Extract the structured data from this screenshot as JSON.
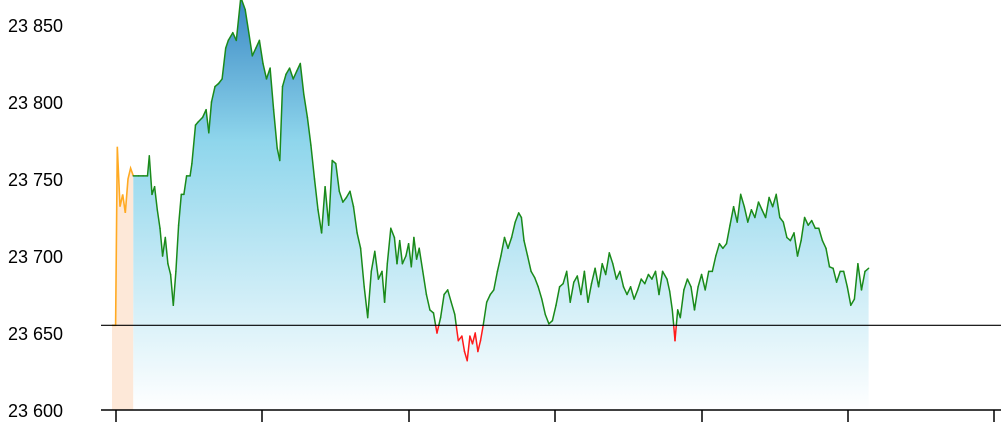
{
  "chart_data": {
    "type": "area",
    "title": "",
    "xlabel": "",
    "ylabel": "",
    "ylim": [
      23600,
      23870
    ],
    "x_range": [
      0,
      1000
    ],
    "baseline": 23655,
    "yticks": [
      {
        "value": 23850,
        "label": "23 850"
      },
      {
        "value": 23800,
        "label": "23 800"
      },
      {
        "value": 23750,
        "label": "23 750"
      },
      {
        "value": 23700,
        "label": "23 700"
      },
      {
        "value": 23650,
        "label": "23 650"
      },
      {
        "value": 23600,
        "label": "23 600"
      }
    ],
    "xticks": [
      0,
      146,
      293,
      439,
      586,
      732,
      878
    ],
    "colors": {
      "up_line": "#1a8a1a",
      "down_line": "#ff1a1a",
      "pre_line": "#ffaa22",
      "baseline": "#000000",
      "fill_top": "#3a88c4",
      "fill_mid": "#8fd6ec",
      "fill_bottom": "#ffffff",
      "pre_fill": "#fde8d8"
    },
    "pre_session": [
      [
        0,
        23655
      ],
      [
        4,
        23655
      ],
      [
        6,
        23771
      ],
      [
        9,
        23732
      ],
      [
        12,
        23740
      ],
      [
        15,
        23728
      ],
      [
        18,
        23750
      ],
      [
        21,
        23757
      ],
      [
        24,
        23752
      ]
    ],
    "series": [
      [
        24,
        23752
      ],
      [
        30,
        23752
      ],
      [
        35,
        23752
      ],
      [
        40,
        23752
      ],
      [
        42,
        23765
      ],
      [
        45,
        23740
      ],
      [
        48,
        23745
      ],
      [
        51,
        23730
      ],
      [
        54,
        23718
      ],
      [
        57,
        23700
      ],
      [
        60,
        23712
      ],
      [
        63,
        23695
      ],
      [
        66,
        23688
      ],
      [
        69,
        23668
      ],
      [
        72,
        23690
      ],
      [
        75,
        23720
      ],
      [
        78,
        23740
      ],
      [
        81,
        23740
      ],
      [
        84,
        23752
      ],
      [
        88,
        23752
      ],
      [
        90,
        23760
      ],
      [
        94,
        23785
      ],
      [
        97,
        23787
      ],
      [
        102,
        23790
      ],
      [
        106,
        23795
      ],
      [
        109,
        23780
      ],
      [
        112,
        23800
      ],
      [
        116,
        23810
      ],
      [
        120,
        23812
      ],
      [
        124,
        23815
      ],
      [
        128,
        23835
      ],
      [
        131,
        23840
      ],
      [
        136,
        23845
      ],
      [
        140,
        23840
      ],
      [
        145,
        23868
      ],
      [
        150,
        23860
      ],
      [
        154,
        23845
      ],
      [
        158,
        23830
      ],
      [
        162,
        23835
      ],
      [
        166,
        23840
      ],
      [
        170,
        23825
      ],
      [
        174,
        23815
      ],
      [
        178,
        23822
      ],
      [
        182,
        23795
      ],
      [
        186,
        23770
      ],
      [
        189,
        23762
      ],
      [
        192,
        23810
      ],
      [
        196,
        23818
      ],
      [
        200,
        23822
      ],
      [
        204,
        23815
      ],
      [
        208,
        23820
      ],
      [
        212,
        23825
      ],
      [
        216,
        23805
      ],
      [
        220,
        23790
      ],
      [
        224,
        23772
      ],
      [
        228,
        23750
      ],
      [
        232,
        23730
      ],
      [
        236,
        23715
      ],
      [
        240,
        23745
      ],
      [
        244,
        23720
      ],
      [
        248,
        23762
      ],
      [
        252,
        23760
      ],
      [
        256,
        23742
      ],
      [
        260,
        23735
      ],
      [
        264,
        23738
      ],
      [
        268,
        23742
      ],
      [
        272,
        23732
      ],
      [
        276,
        23715
      ],
      [
        280,
        23705
      ],
      [
        284,
        23680
      ],
      [
        288,
        23660
      ],
      [
        292,
        23690
      ],
      [
        296,
        23703
      ],
      [
        300,
        23685
      ],
      [
        304,
        23690
      ],
      [
        307,
        23670
      ],
      [
        310,
        23695
      ],
      [
        314,
        23718
      ],
      [
        318,
        23712
      ],
      [
        321,
        23695
      ],
      [
        324,
        23710
      ],
      [
        327,
        23695
      ],
      [
        331,
        23700
      ],
      [
        334,
        23708
      ],
      [
        337,
        23693
      ],
      [
        340,
        23712
      ],
      [
        343,
        23698
      ],
      [
        346,
        23705
      ],
      [
        350,
        23690
      ],
      [
        354,
        23675
      ],
      [
        358,
        23665
      ],
      [
        362,
        23663
      ],
      [
        366,
        23650
      ],
      [
        370,
        23660
      ],
      [
        374,
        23675
      ],
      [
        378,
        23678
      ],
      [
        382,
        23670
      ],
      [
        386,
        23662
      ],
      [
        390,
        23645
      ],
      [
        394,
        23648
      ],
      [
        397,
        23638
      ],
      [
        400,
        23632
      ],
      [
        403,
        23648
      ],
      [
        406,
        23643
      ],
      [
        409,
        23650
      ],
      [
        412,
        23638
      ],
      [
        415,
        23645
      ],
      [
        418,
        23655
      ],
      [
        422,
        23670
      ],
      [
        426,
        23675
      ],
      [
        430,
        23678
      ],
      [
        434,
        23690
      ],
      [
        438,
        23700
      ],
      [
        442,
        23712
      ],
      [
        446,
        23705
      ],
      [
        450,
        23712
      ],
      [
        454,
        23722
      ],
      [
        458,
        23728
      ],
      [
        461,
        23725
      ],
      [
        464,
        23710
      ],
      [
        468,
        23700
      ],
      [
        472,
        23690
      ],
      [
        476,
        23686
      ],
      [
        480,
        23680
      ],
      [
        484,
        23672
      ],
      [
        488,
        23662
      ],
      [
        492,
        23656
      ],
      [
        496,
        23658
      ],
      [
        500,
        23668
      ],
      [
        504,
        23680
      ],
      [
        508,
        23682
      ],
      [
        512,
        23690
      ],
      [
        516,
        23670
      ],
      [
        520,
        23683
      ],
      [
        524,
        23687
      ],
      [
        528,
        23675
      ],
      [
        532,
        23690
      ],
      [
        536,
        23670
      ],
      [
        540,
        23682
      ],
      [
        544,
        23692
      ],
      [
        548,
        23680
      ],
      [
        552,
        23695
      ],
      [
        556,
        23688
      ],
      [
        560,
        23702
      ],
      [
        564,
        23695
      ],
      [
        568,
        23685
      ],
      [
        572,
        23690
      ],
      [
        576,
        23680
      ],
      [
        580,
        23675
      ],
      [
        584,
        23680
      ],
      [
        588,
        23672
      ],
      [
        592,
        23678
      ],
      [
        596,
        23685
      ],
      [
        600,
        23682
      ],
      [
        604,
        23688
      ],
      [
        608,
        23685
      ],
      [
        612,
        23690
      ],
      [
        616,
        23675
      ],
      [
        620,
        23690
      ],
      [
        625,
        23685
      ],
      [
        628,
        23677
      ],
      [
        631,
        23665
      ],
      [
        634,
        23645
      ],
      [
        637,
        23665
      ],
      [
        640,
        23660
      ],
      [
        644,
        23678
      ],
      [
        648,
        23685
      ],
      [
        652,
        23680
      ],
      [
        656,
        23665
      ],
      [
        660,
        23680
      ],
      [
        664,
        23688
      ],
      [
        668,
        23678
      ],
      [
        672,
        23690
      ],
      [
        676,
        23690
      ],
      [
        680,
        23700
      ],
      [
        684,
        23708
      ],
      [
        688,
        23705
      ],
      [
        692,
        23708
      ],
      [
        696,
        23720
      ],
      [
        700,
        23732
      ],
      [
        704,
        23722
      ],
      [
        708,
        23740
      ],
      [
        712,
        23732
      ],
      [
        716,
        23722
      ],
      [
        720,
        23730
      ],
      [
        724,
        23725
      ],
      [
        728,
        23735
      ],
      [
        732,
        23730
      ],
      [
        736,
        23725
      ],
      [
        740,
        23738
      ],
      [
        744,
        23732
      ],
      [
        748,
        23740
      ],
      [
        752,
        23725
      ],
      [
        756,
        23722
      ],
      [
        760,
        23712
      ],
      [
        764,
        23710
      ],
      [
        768,
        23715
      ],
      [
        772,
        23700
      ],
      [
        776,
        23710
      ],
      [
        780,
        23725
      ],
      [
        784,
        23720
      ],
      [
        788,
        23723
      ],
      [
        792,
        23718
      ],
      [
        796,
        23718
      ],
      [
        800,
        23710
      ],
      [
        804,
        23705
      ],
      [
        808,
        23693
      ],
      [
        812,
        23692
      ],
      [
        816,
        23683
      ],
      [
        820,
        23690
      ],
      [
        824,
        23690
      ],
      [
        828,
        23680
      ],
      [
        832,
        23668
      ],
      [
        836,
        23672
      ],
      [
        840,
        23695
      ],
      [
        844,
        23678
      ],
      [
        848,
        23690
      ],
      [
        852,
        23692
      ]
    ]
  }
}
